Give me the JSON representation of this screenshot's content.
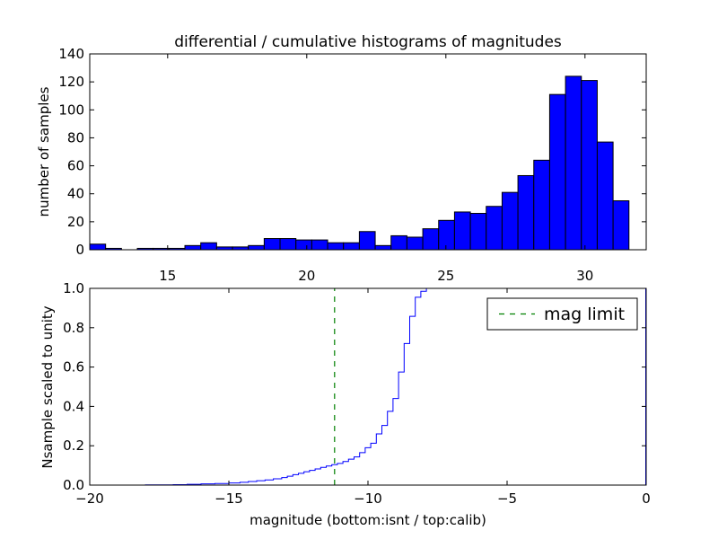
{
  "chart_data": [
    {
      "type": "bar",
      "title": "differential / cumulative histograms of magnitudes",
      "xlabel": "",
      "ylabel": "number of samples",
      "xlim": [
        12.2,
        32.2
      ],
      "ylim": [
        0,
        140
      ],
      "x_ticks": [
        15,
        20,
        25,
        30
      ],
      "x_tick_labels": [
        "15",
        "20",
        "25",
        "30"
      ],
      "y_ticks": [
        0,
        20,
        40,
        60,
        80,
        100,
        120,
        140
      ],
      "y_tick_labels": [
        "0",
        "20",
        "40",
        "60",
        "80",
        "100",
        "120",
        "140"
      ],
      "bin_edges": [
        12.2,
        12.77,
        13.34,
        13.91,
        14.48,
        15.05,
        15.62,
        16.19,
        16.76,
        17.33,
        17.9,
        18.47,
        19.04,
        19.61,
        20.18,
        20.75,
        21.32,
        21.89,
        22.46,
        23.03,
        23.6,
        24.17,
        24.74,
        25.31,
        25.88,
        26.45,
        27.02,
        27.59,
        28.16,
        28.73,
        29.3,
        29.87,
        30.44,
        31.01,
        31.58
      ],
      "values": [
        4,
        1,
        0,
        1,
        1,
        1,
        3,
        5,
        2,
        2,
        3,
        8,
        8,
        7,
        7,
        5,
        5,
        13,
        3,
        10,
        9,
        15,
        21,
        27,
        26,
        31,
        41,
        53,
        64,
        111,
        124,
        121,
        77,
        35,
        5
      ],
      "bar_color": "#0000ff",
      "grid": false
    },
    {
      "type": "line",
      "xlabel": "magnitude (bottom:isnt / top:calib)",
      "ylabel": "Nsample scaled to unity",
      "xlim": [
        -20,
        0
      ],
      "ylim": [
        0,
        1.0
      ],
      "x_ticks": [
        -20,
        -15,
        -10,
        -5,
        0
      ],
      "x_tick_labels": [
        "−20",
        "−15",
        "−10",
        "−5",
        "0"
      ],
      "y_ticks": [
        0.0,
        0.2,
        0.4,
        0.6,
        0.8,
        1.0
      ],
      "y_tick_labels": [
        "0.0",
        "0.2",
        "0.4",
        "0.6",
        "0.8",
        "1.0"
      ],
      "legend": {
        "position": "top-right",
        "entries": [
          "mag limit"
        ]
      },
      "grid": false,
      "series": [
        {
          "style": "steps",
          "color": "#0000ff",
          "x": [
            -20,
            -18,
            -17,
            -16.5,
            -16,
            -15.5,
            -15,
            -14.6,
            -14.3,
            -14.0,
            -13.7,
            -13.4,
            -13.1,
            -12.9,
            -12.7,
            -12.5,
            -12.3,
            -12.1,
            -11.9,
            -11.7,
            -11.5,
            -11.3,
            -11.1,
            -10.9,
            -10.7,
            -10.5,
            -10.3,
            -10.1,
            -9.9,
            -9.7,
            -9.5,
            -9.3,
            -9.1,
            -8.9,
            -8.7,
            -8.5,
            -8.3,
            -8.1,
            -7.9,
            -7.7
          ],
          "y": [
            0.0,
            0.001,
            0.002,
            0.004,
            0.006,
            0.008,
            0.011,
            0.014,
            0.018,
            0.022,
            0.026,
            0.032,
            0.038,
            0.045,
            0.053,
            0.06,
            0.068,
            0.075,
            0.082,
            0.09,
            0.097,
            0.104,
            0.11,
            0.12,
            0.132,
            0.143,
            0.165,
            0.19,
            0.213,
            0.26,
            0.303,
            0.375,
            0.44,
            0.575,
            0.72,
            0.858,
            0.955,
            0.985,
            1.0,
            1.0
          ]
        },
        {
          "name": "mag limit",
          "style": "dashed-vertical",
          "color": "#008000",
          "x": [
            -11.2,
            -11.2
          ],
          "y": [
            0,
            1.0
          ]
        }
      ]
    }
  ]
}
